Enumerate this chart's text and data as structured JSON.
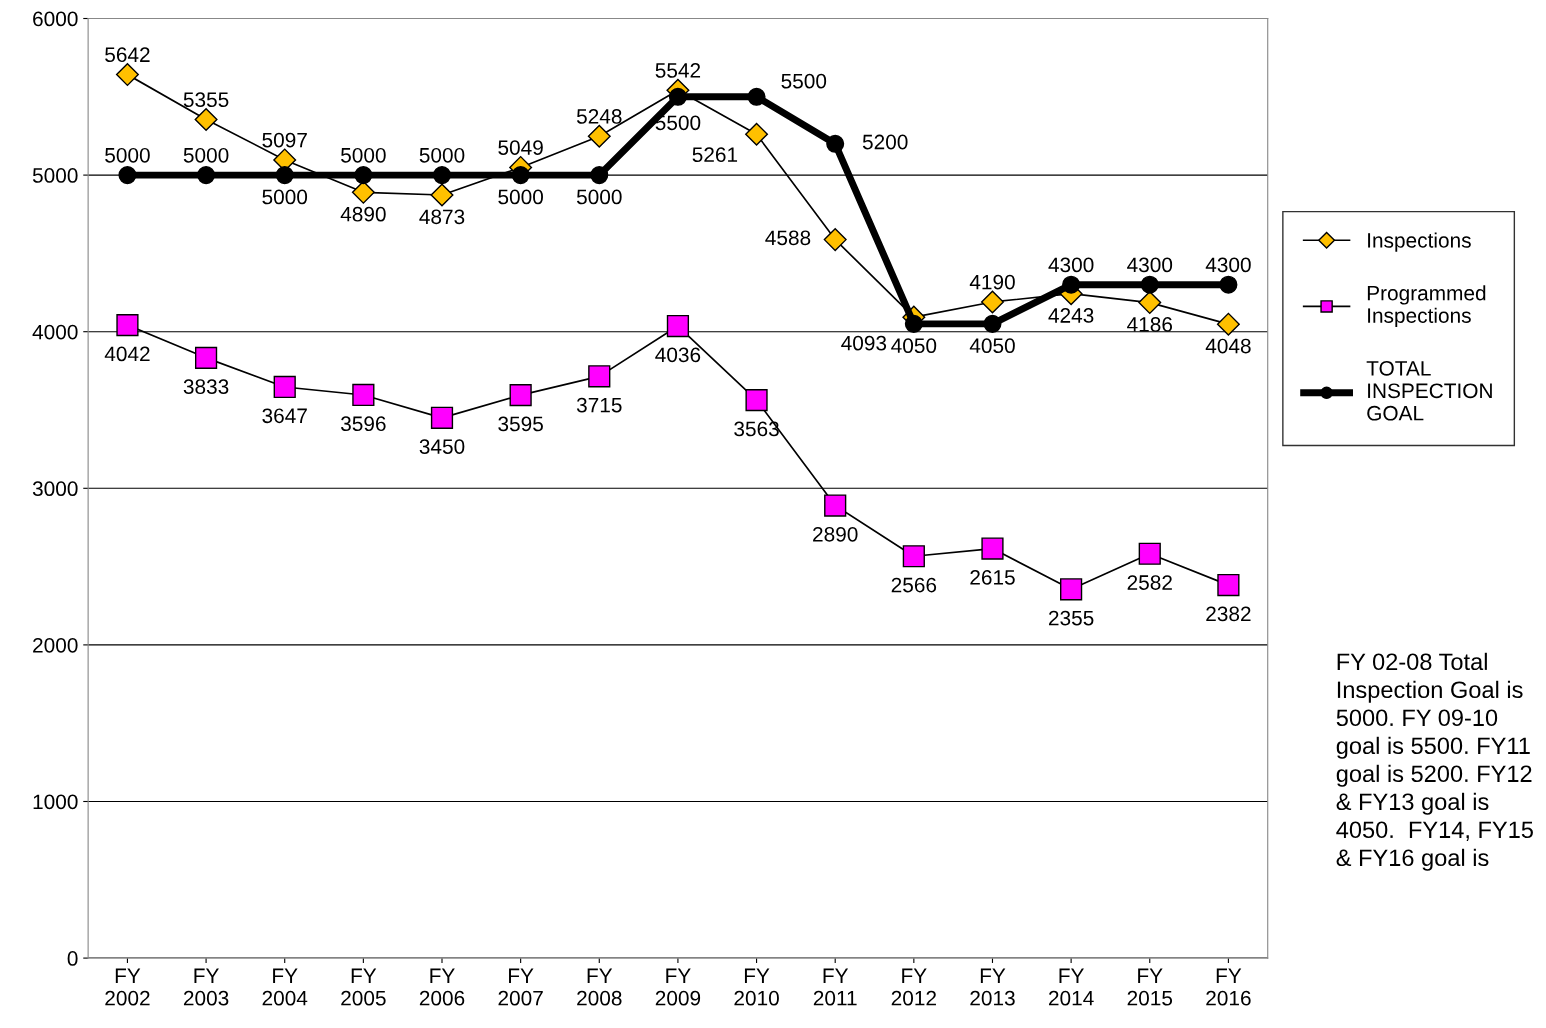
{
  "chart_data": {
    "type": "line",
    "categories": [
      "FY\n2002",
      "FY\n2003",
      "FY\n2004",
      "FY\n2005",
      "FY\n2006",
      "FY\n2007",
      "FY\n2008",
      "FY\n2009",
      "FY\n2010",
      "FY\n2011",
      "FY\n2012",
      "FY\n2013",
      "FY\n2014",
      "FY\n2015",
      "FY\n2016"
    ],
    "series": [
      {
        "name": "Inspections",
        "color": "#ffc000",
        "marker": "diamond",
        "values": [
          5642,
          5355,
          5097,
          4890,
          4873,
          5049,
          5248,
          5542,
          5261,
          4588,
          4093,
          4190,
          4243,
          4186,
          4048
        ]
      },
      {
        "name": "Programmed\nInspections",
        "color": "#ff00ff",
        "marker": "square",
        "values": [
          4042,
          3833,
          3647,
          3596,
          3450,
          3595,
          3715,
          4036,
          3563,
          2890,
          2566,
          2615,
          2355,
          2582,
          2382
        ]
      },
      {
        "name": "TOTAL\nINSPECTION\nGOAL",
        "color": "#000000",
        "marker": "circle",
        "values": [
          5000,
          5000,
          5000,
          5000,
          5000,
          5000,
          5000,
          5500,
          5500,
          5200,
          4050,
          4050,
          4300,
          4300,
          4300
        ]
      }
    ],
    "ylim": [
      0,
      6000
    ],
    "yticks": [
      0,
      1000,
      2000,
      3000,
      4000,
      5000,
      6000
    ],
    "grid": "y",
    "legend": "right",
    "data_labels": true,
    "annotations": [
      "FY 02-08 Total Inspection Goal is 5000. FY 09-10 goal is 5500. FY11 goal is 5200. FY12 & FY13 goal is 4050.  FY14, FY15 & FY16 goal is"
    ]
  }
}
